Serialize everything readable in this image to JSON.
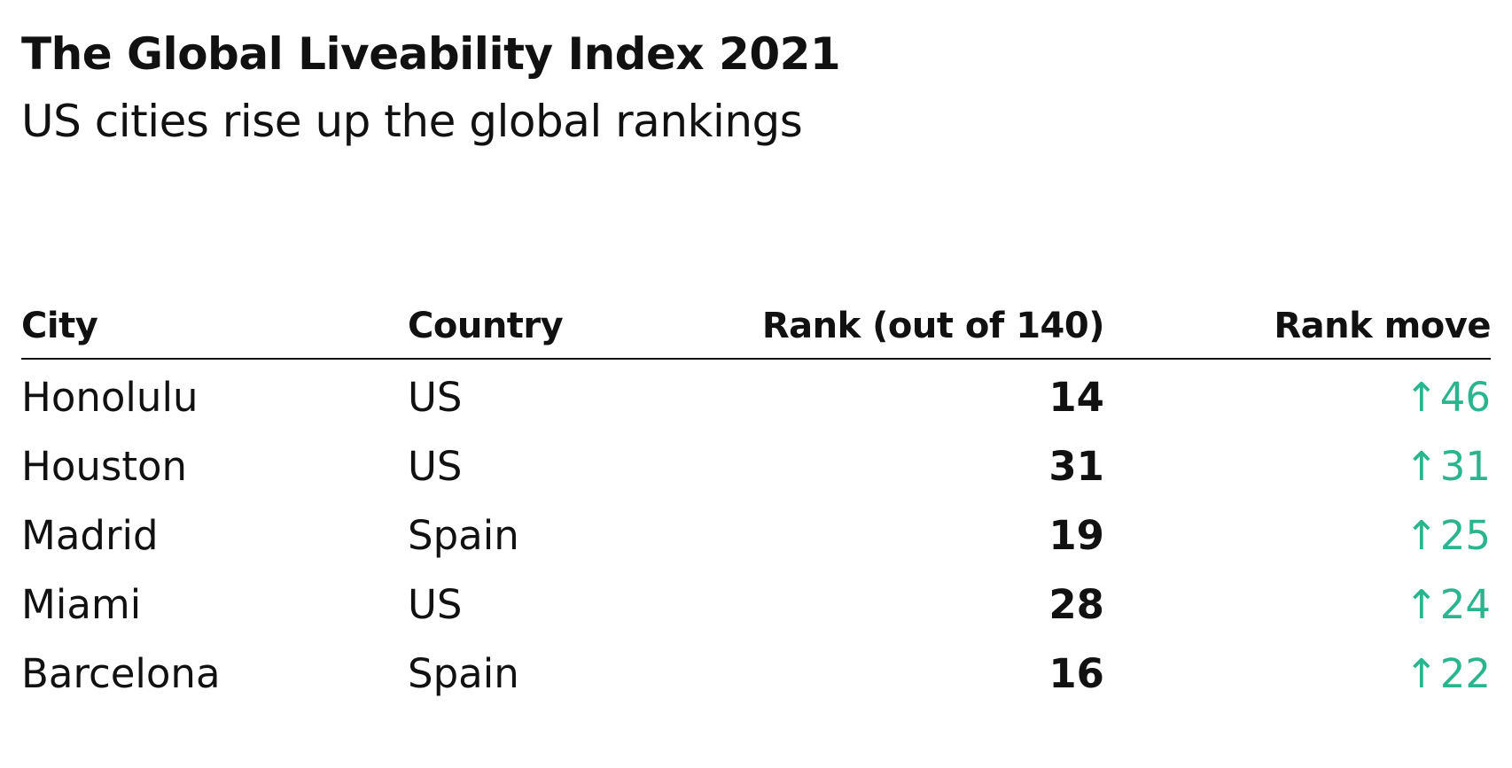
{
  "chart_data": {
    "type": "table",
    "title": "The Global Liveability Index 2021",
    "subtitle": "US cities rise up the global rankings",
    "columns": [
      "City",
      "Country",
      "Rank (out of 140)",
      "Rank move"
    ],
    "rows": [
      {
        "city": "Honolulu",
        "country": "US",
        "rank": "14",
        "move": "46"
      },
      {
        "city": "Houston",
        "country": "US",
        "rank": "31",
        "move": "31"
      },
      {
        "city": "Madrid",
        "country": "Spain",
        "rank": "19",
        "move": "25"
      },
      {
        "city": "Miami",
        "country": "US",
        "rank": "28",
        "move": "24"
      },
      {
        "city": "Barcelona",
        "country": "Spain",
        "rank": "16",
        "move": "22"
      }
    ],
    "move_symbol": "↑",
    "colors": {
      "text": "#111111",
      "rank_move": "#2bb58f",
      "rule": "#111111"
    }
  }
}
